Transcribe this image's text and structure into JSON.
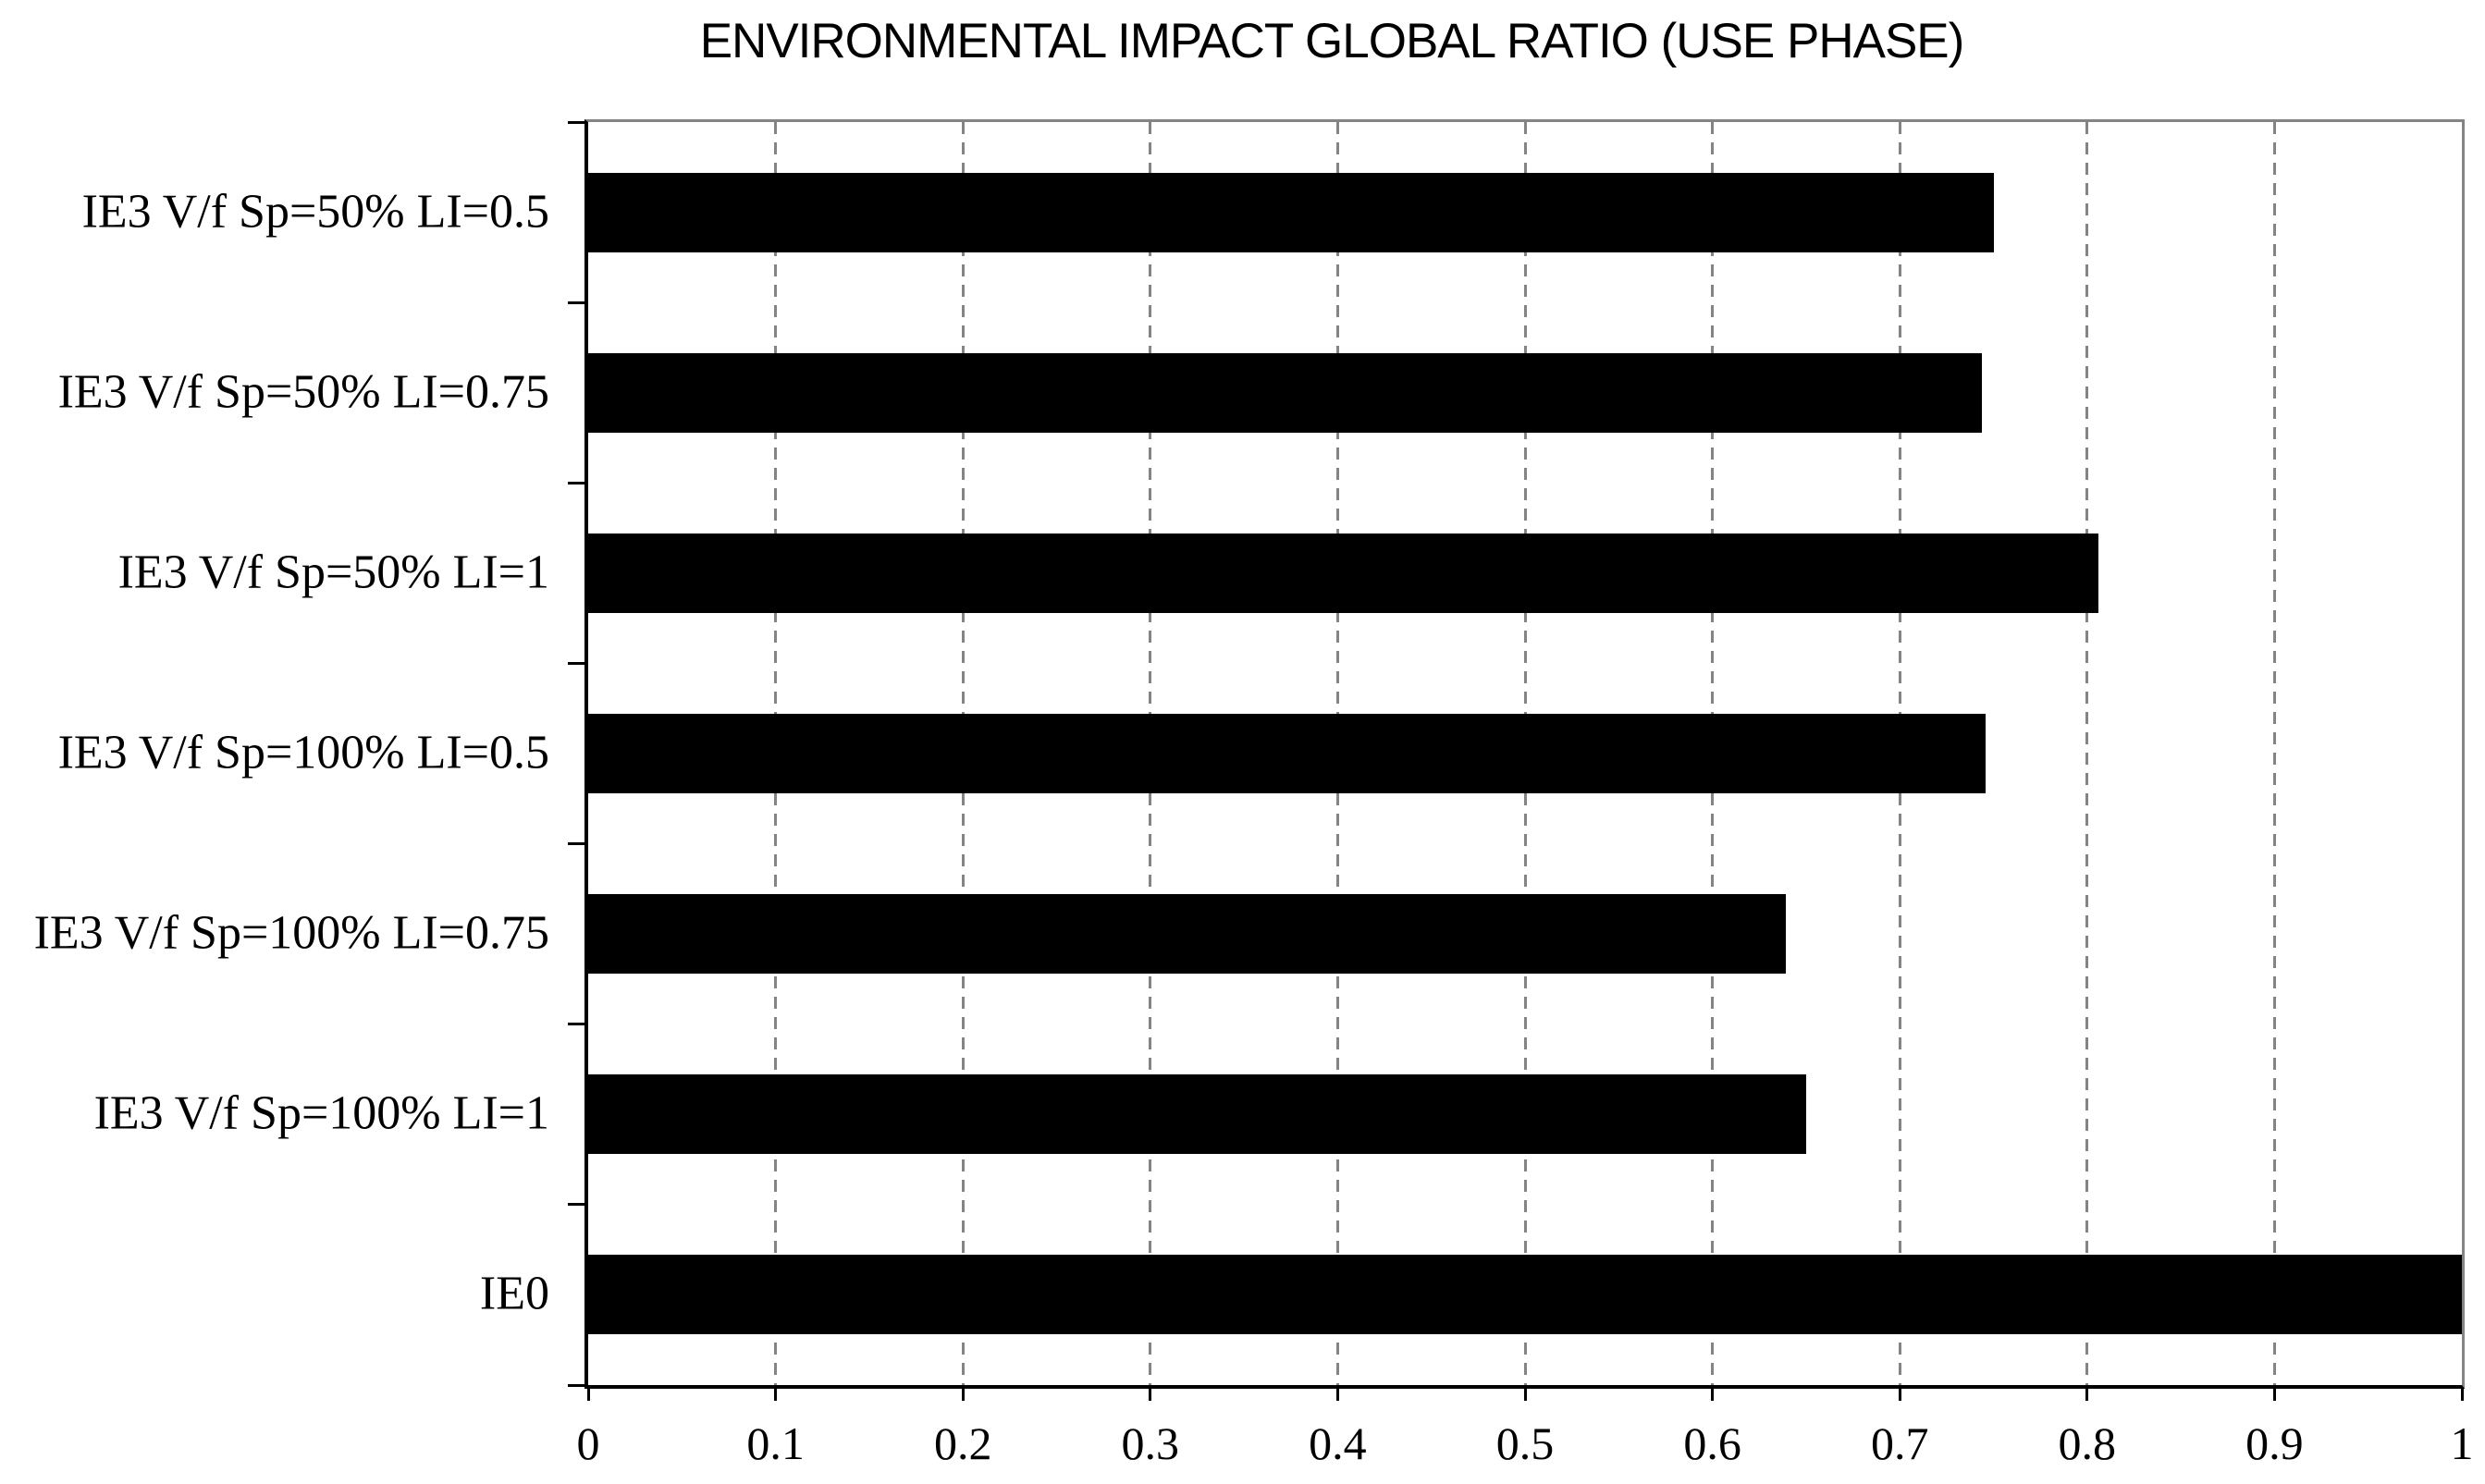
{
  "page": {
    "background": "#ffffff"
  },
  "chart_data": {
    "type": "bar",
    "orientation": "horizontal",
    "title": "ENVIRONMENTAL IMPACT GLOBAL RATIO (USE PHASE)",
    "categories": [
      "IE3 V/f Sp=50% LI=0.5",
      "IE3 V/f Sp=50% LI=0.75",
      "IE3 V/f Sp=50% LI=1",
      "IE3 V/f Sp=100% LI=0.5",
      "IE3 V/f Sp=100% LI=0.75",
      "IE3 V/f Sp=100% LI=1",
      "IE0"
    ],
    "values": [
      0.75,
      0.744,
      0.806,
      0.746,
      0.639,
      0.65,
      1.0
    ],
    "xlabel": "",
    "ylabel": "",
    "xlim": [
      0,
      1
    ],
    "x_ticks": [
      0,
      0.1,
      0.2,
      0.3,
      0.4,
      0.5,
      0.6,
      0.7,
      0.8,
      0.9,
      1
    ],
    "x_tick_labels": [
      "0",
      "0.1",
      "0.2",
      "0.3",
      "0.4",
      "0.5",
      "0.6",
      "0.7",
      "0.8",
      "0.9",
      "1"
    ],
    "grid": {
      "axis": "x",
      "style": "dashed",
      "color": "#848484"
    },
    "legend_position": "none",
    "bar_color": "#000000",
    "axis_color": "#000000",
    "plot_border_color": "#848484"
  }
}
